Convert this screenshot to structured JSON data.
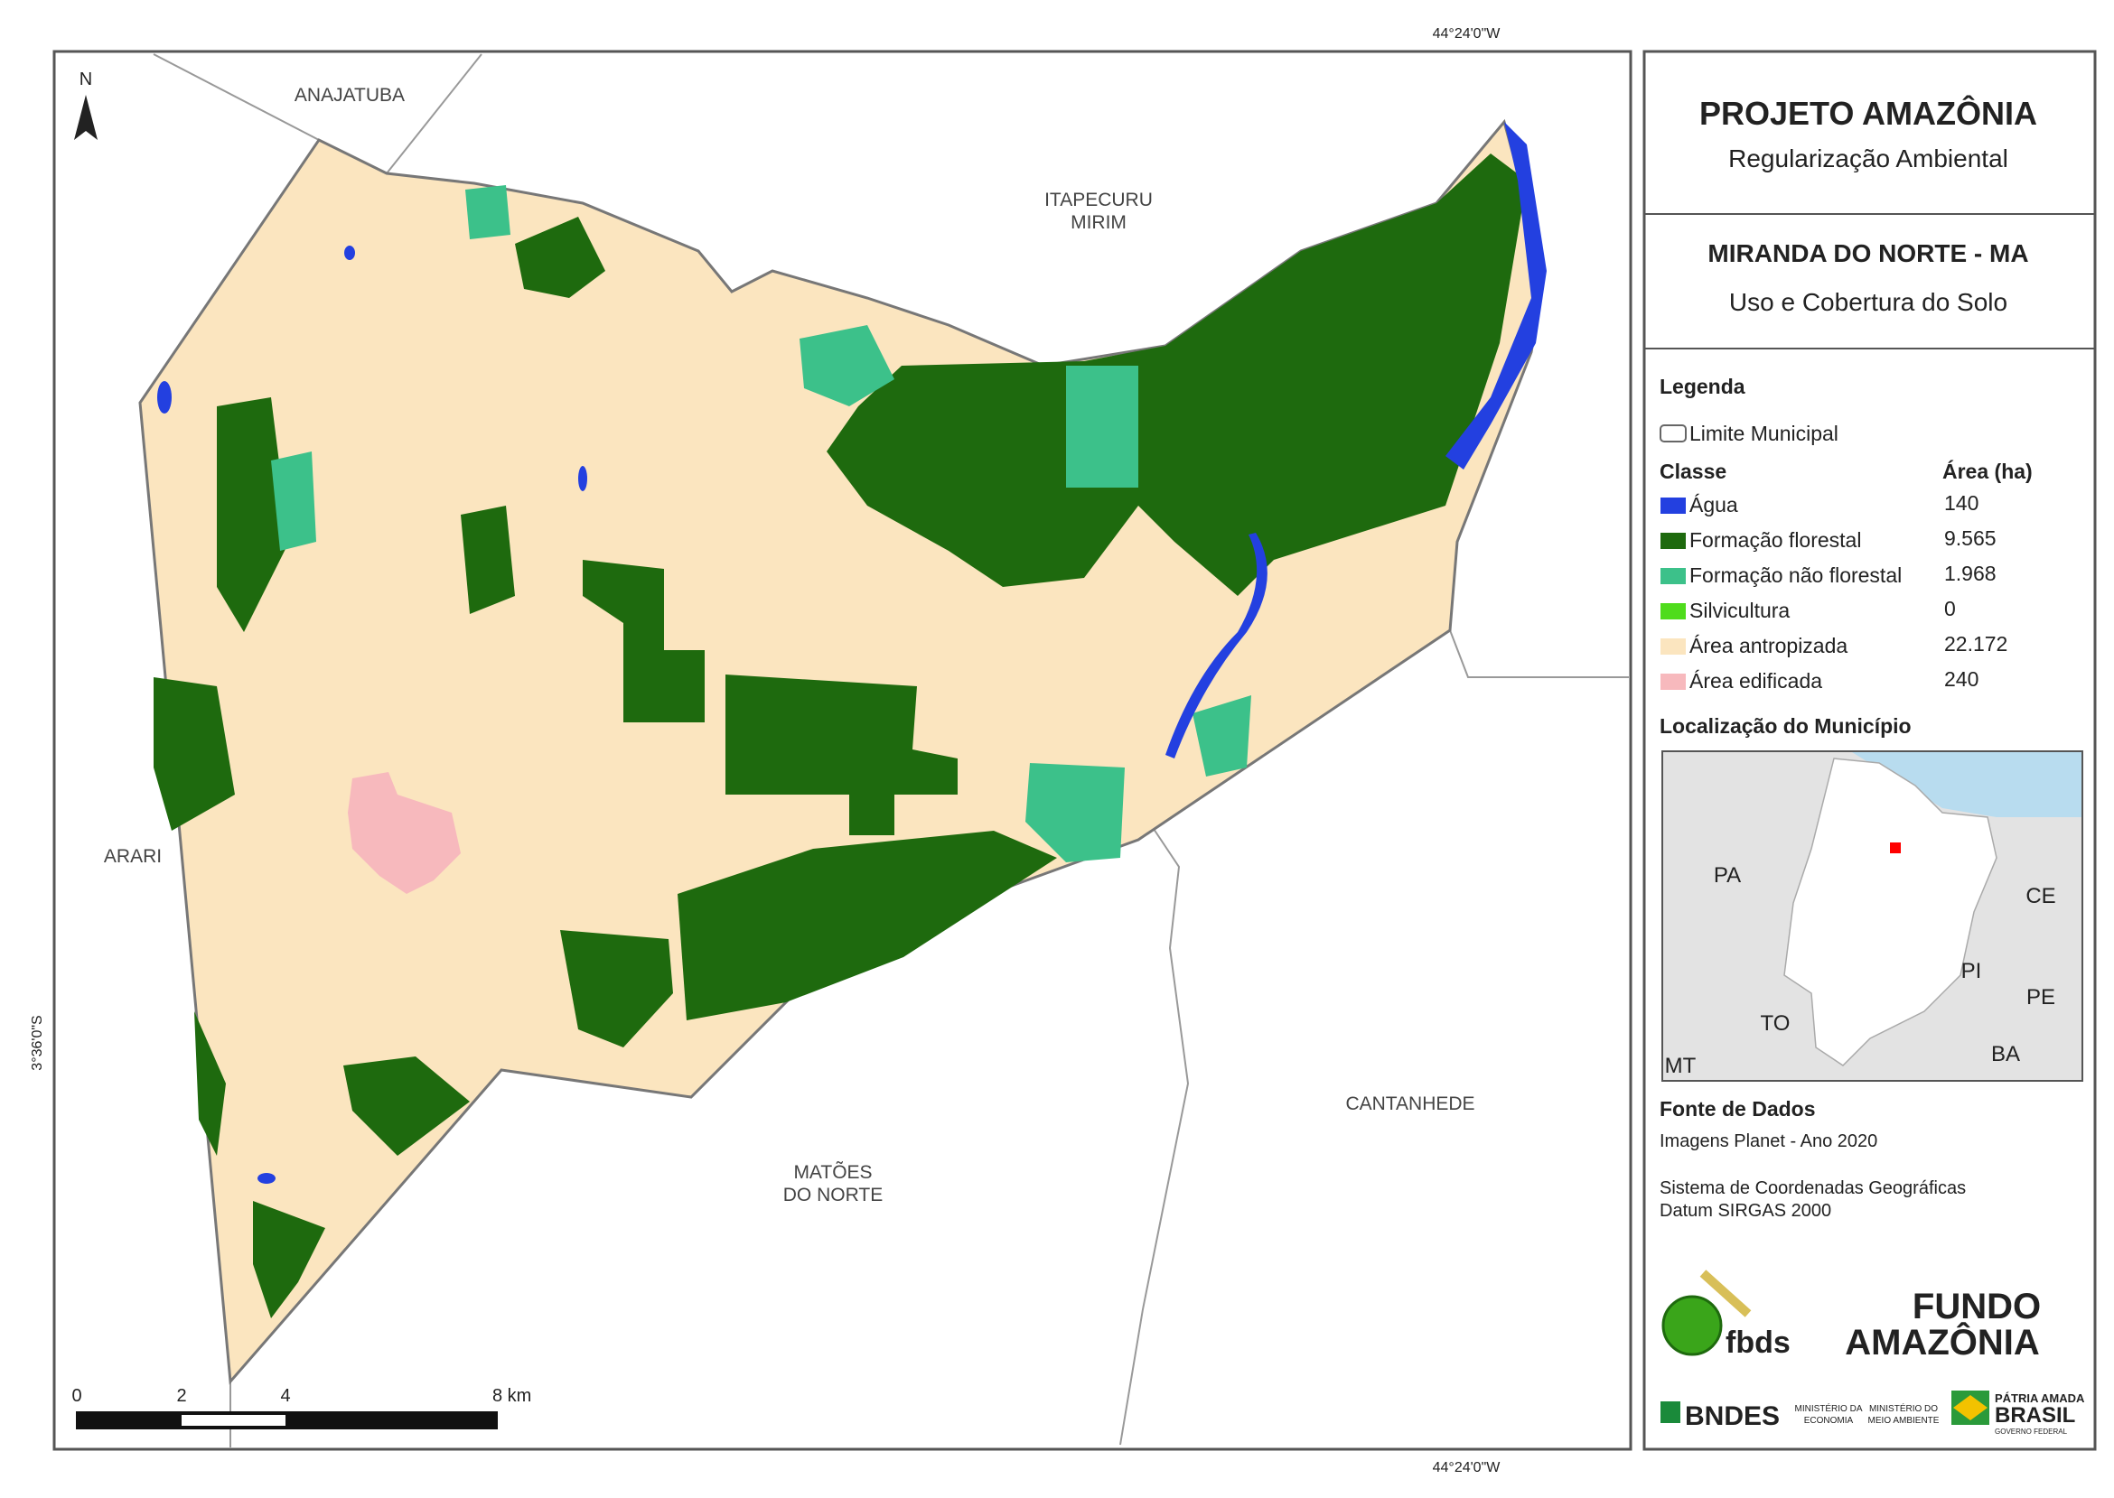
{
  "map": {
    "coordinates": {
      "top": "44°24'0\"W",
      "bottom": "44°24'0\"W",
      "left": "3°36'0\"S"
    },
    "north": "N",
    "neighbors": [
      [
        "ANAJATUBA"
      ],
      [
        "ITAPECURU",
        "MIRIM"
      ],
      [
        "ARARI"
      ],
      [
        "MATÕES",
        "DO NORTE"
      ],
      [
        "CANTANHEDE"
      ]
    ],
    "scale_bar": [
      "0",
      "2",
      "4",
      "8 km"
    ]
  },
  "panel": {
    "title": "PROJETO AMAZÔNIA",
    "subtitle": "Regularização Ambiental",
    "municipality": "MIRANDA DO NORTE - MA",
    "theme": "Uso e Cobertura do Solo",
    "legend": {
      "heading": "Legenda",
      "boundary": "Limite Municipal",
      "class_header": "Classe",
      "area_header": "Área (ha)",
      "rows": [
        [
          "Água",
          "140"
        ],
        [
          "Formação florestal",
          "9.565"
        ],
        [
          "Formação não florestal",
          "1.968"
        ],
        [
          "Silvicultura",
          "0"
        ],
        [
          "Área antropizada",
          "22.172"
        ],
        [
          "Área edificada",
          "240"
        ]
      ]
    },
    "location": {
      "heading": "Localização do Município",
      "states": [
        "PA",
        "CE",
        "PI",
        "PE",
        "TO",
        "BA",
        "MT"
      ]
    },
    "source": {
      "heading": "Fonte de Dados",
      "lines": [
        "Imagens Planet - Ano 2020",
        "Sistema de Coordenadas Geográficas",
        "Datum SIRGAS 2000"
      ]
    },
    "logos": {
      "fbds": "fbds",
      "fundo": [
        "FUNDO",
        "AMAZÔNIA"
      ],
      "bndes": "BNDES",
      "ministries": [
        [
          "MINISTÉRIO DA",
          "ECONOMIA"
        ],
        [
          "MINISTÉRIO DO",
          "MEIO AMBIENTE"
        ]
      ],
      "brasil": [
        "PÁTRIA AMADA",
        "BRASIL",
        "GOVERNO FEDERAL"
      ]
    }
  }
}
